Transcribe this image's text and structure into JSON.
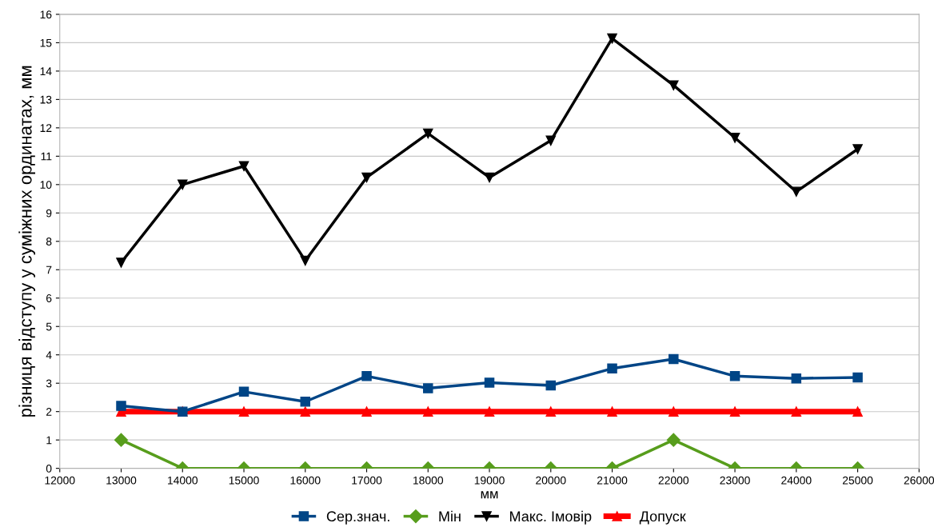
{
  "chart_data": {
    "type": "line",
    "xlabel": "мм",
    "ylabel": "різниця відступу у суміжних ординатах, мм",
    "x": [
      13000,
      14000,
      15000,
      16000,
      17000,
      18000,
      19000,
      20000,
      21000,
      22000,
      23000,
      24000,
      25000
    ],
    "series": [
      {
        "name": "Сер.знач.",
        "color": "#004586",
        "marker": "square",
        "values": [
          2.2,
          2.0,
          2.7,
          2.35,
          3.25,
          2.82,
          3.02,
          2.92,
          3.52,
          3.85,
          3.25,
          3.17,
          3.2
        ]
      },
      {
        "name": "Мін",
        "color": "#579d1c",
        "marker": "diamond",
        "values": [
          1,
          0,
          0,
          0,
          0,
          0,
          0,
          0,
          0,
          1,
          0,
          0,
          0
        ]
      },
      {
        "name": "Макс. Імовір",
        "color": "#000000",
        "marker": "triangle_down",
        "values": [
          7.25,
          10.0,
          10.65,
          7.32,
          10.25,
          11.8,
          10.25,
          11.55,
          15.15,
          13.5,
          11.65,
          9.75,
          11.25
        ]
      },
      {
        "name": "Допуск",
        "color": "#ff0000",
        "marker": "triangle",
        "values": [
          2,
          2,
          2,
          2,
          2,
          2,
          2,
          2,
          2,
          2,
          2,
          2,
          2
        ]
      }
    ],
    "xlim": [
      12000,
      26000
    ],
    "xticks": [
      12000,
      13000,
      14000,
      15000,
      16000,
      17000,
      18000,
      19000,
      20000,
      21000,
      22000,
      23000,
      24000,
      25000,
      26000
    ],
    "ylim": [
      0,
      16
    ],
    "yticks": [
      0,
      1,
      2,
      3,
      4,
      5,
      6,
      7,
      8,
      9,
      10,
      11,
      12,
      13,
      14,
      15,
      16
    ],
    "grid": "y",
    "legend": "bottom"
  }
}
